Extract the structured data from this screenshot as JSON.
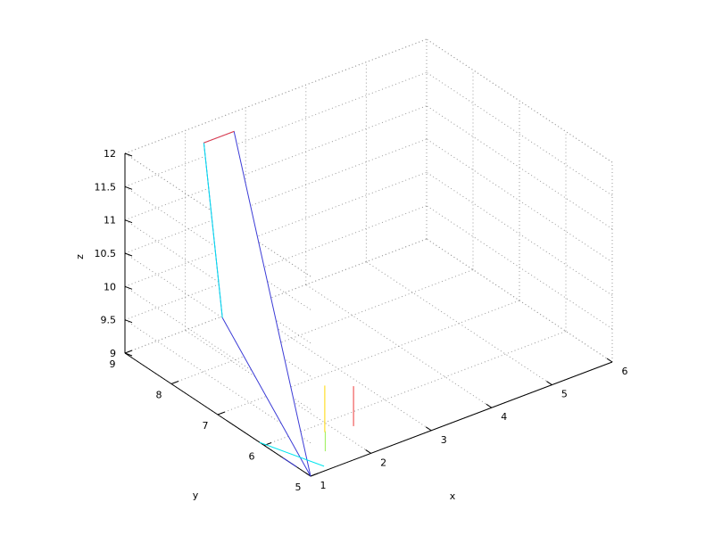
{
  "chart_data": {
    "type": "3d-line",
    "title": "",
    "xlabel": "x",
    "ylabel": "y",
    "zlabel": "z",
    "xlim": [
      1,
      6
    ],
    "ylim": [
      5,
      9
    ],
    "zlim": [
      9,
      12
    ],
    "x_ticks": [
      "1",
      "2",
      "3",
      "4",
      "5",
      "6"
    ],
    "y_ticks": [
      "5",
      "6",
      "7",
      "8",
      "9"
    ],
    "z_ticks": [
      "9",
      "9.5",
      "10",
      "10.5",
      "11",
      "11.5",
      "12"
    ],
    "grid": true,
    "box": true,
    "colors": {
      "surface_edge": "#3b3bd6",
      "surface_fill": "#ffffff",
      "grid": "#9a9a9a",
      "axes": "#000000"
    },
    "surface": {
      "vertices": [
        {
          "x": 1.0,
          "y": 5.0,
          "z": 9.0
        },
        {
          "x": 1.0,
          "y": 6.9,
          "z": 10.5
        },
        {
          "x": 2.0,
          "y": 8.6,
          "z": 12.0
        },
        {
          "x": 2.5,
          "y": 8.6,
          "z": 12.0
        }
      ]
    },
    "series": [
      {
        "color": "#00e5ee",
        "x": [
          1.0,
          1.3
        ],
        "y": [
          6.1,
          5.1
        ],
        "z": [
          9.0,
          9.0
        ]
      },
      {
        "color": "#3333cc",
        "x": [
          1.0,
          1.0
        ],
        "y": [
          5.3,
          5.6
        ],
        "z": [
          9.0,
          9.0
        ]
      },
      {
        "color": "#99ee55",
        "x": [
          1.55,
          1.55
        ],
        "y": [
          5.4,
          5.4
        ],
        "z": [
          9.0,
          9.3
        ]
      },
      {
        "color": "#ffd700",
        "x": [
          1.85,
          1.85
        ],
        "y": [
          5.8,
          5.8
        ],
        "z": [
          9.0,
          9.7
        ]
      },
      {
        "color": "#ee3b3b",
        "x": [
          2.25,
          2.25
        ],
        "y": [
          5.7,
          5.7
        ],
        "z": [
          9.0,
          9.6
        ]
      },
      {
        "color": "#00e5ee",
        "x": [
          1.0,
          2.0
        ],
        "y": [
          6.9,
          8.6
        ],
        "z": [
          10.5,
          12.0
        ]
      },
      {
        "color": "#ee3b3b",
        "x": [
          2.0,
          2.5
        ],
        "y": [
          8.6,
          8.6
        ],
        "z": [
          12.0,
          12.0
        ]
      }
    ]
  }
}
